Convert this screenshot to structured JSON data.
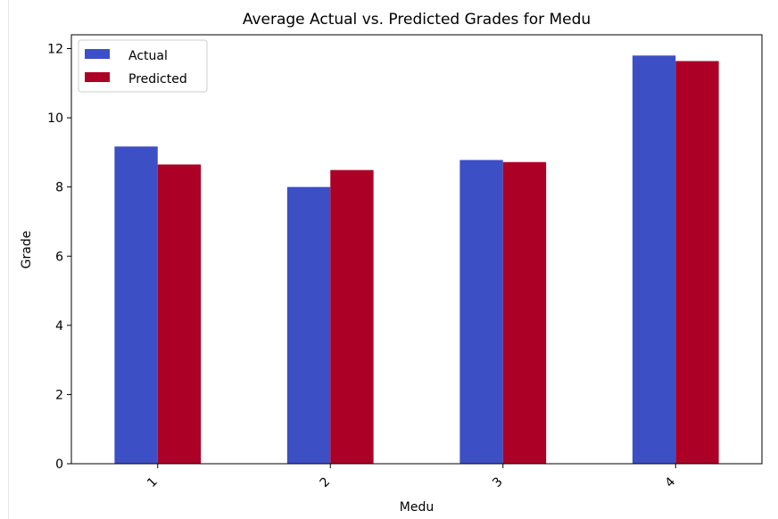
{
  "chart_data": {
    "type": "bar",
    "title": "Average Actual vs. Predicted Grades for Medu",
    "xlabel": "Medu",
    "ylabel": "Grade",
    "categories": [
      "1",
      "2",
      "3",
      "4"
    ],
    "series": [
      {
        "name": "Actual",
        "values": [
          9.17,
          8.0,
          8.78,
          11.8
        ]
      },
      {
        "name": "Predicted",
        "values": [
          8.65,
          8.49,
          8.72,
          11.64
        ]
      }
    ],
    "ylim": [
      0,
      12.4
    ],
    "yticks": [
      "0",
      "2",
      "4",
      "6",
      "8",
      "10",
      "12"
    ],
    "grid": false,
    "legend_position": "top-left",
    "colors": {
      "Actual": "#3d4fc4",
      "Predicted": "#ac0026"
    }
  }
}
